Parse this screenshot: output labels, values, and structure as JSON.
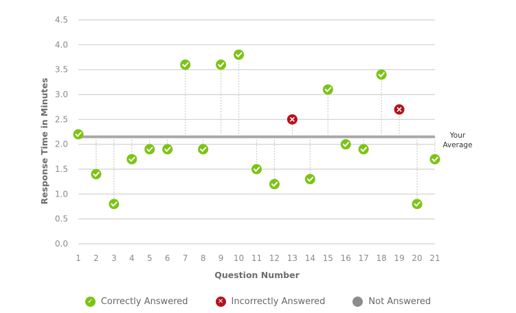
{
  "chart_data": {
    "type": "scatter",
    "title": "",
    "xlabel": "Question Number",
    "ylabel": "Response Time in Minutes",
    "ylim": [
      0,
      4.5
    ],
    "yticks": [
      "0.0",
      "0.5",
      "1.0",
      "1.5",
      "2.0",
      "2.5",
      "3.0",
      "3.5",
      "4.0",
      "4.5"
    ],
    "x": [
      1,
      2,
      3,
      4,
      5,
      6,
      7,
      8,
      9,
      10,
      11,
      12,
      13,
      14,
      15,
      16,
      17,
      18,
      19,
      20,
      21
    ],
    "values": [
      2.2,
      1.4,
      0.8,
      1.7,
      1.9,
      1.9,
      3.6,
      1.9,
      3.6,
      3.8,
      1.5,
      1.2,
      2.5,
      1.3,
      3.1,
      2.0,
      1.9,
      3.4,
      2.7,
      0.8,
      1.7
    ],
    "status": [
      "correct",
      "correct",
      "correct",
      "correct",
      "correct",
      "correct",
      "correct",
      "correct",
      "correct",
      "correct",
      "correct",
      "correct",
      "incorrect",
      "correct",
      "correct",
      "correct",
      "correct",
      "correct",
      "incorrect",
      "correct",
      "correct"
    ],
    "average": 2.15,
    "average_label_line1": "Your",
    "average_label_line2": "Average",
    "grid": true,
    "legend_position": "bottom",
    "legend": [
      {
        "label": "Correctly Answered",
        "key": "correct",
        "color": "#7cc414"
      },
      {
        "label": "Incorrectly Answered",
        "key": "incorrect",
        "color": "#b5121b"
      },
      {
        "label": "Not Answered",
        "key": "unanswered",
        "color": "#8c8c8c"
      }
    ]
  }
}
